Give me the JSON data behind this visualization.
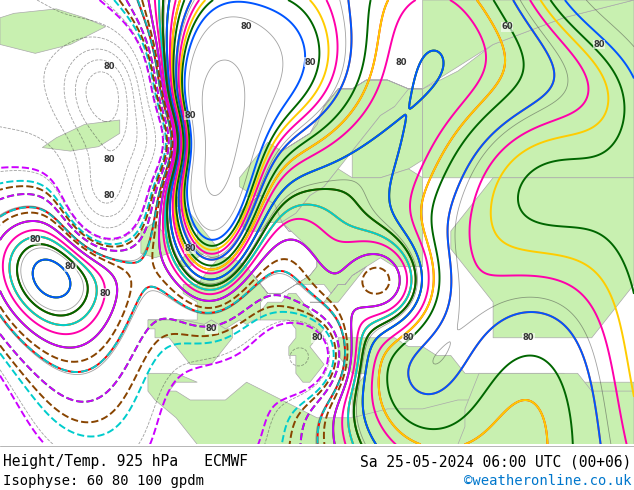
{
  "title_left": "Height/Temp. 925 hPa   ECMWF",
  "title_right": "Sa 25-05-2024 06:00 UTC (00+06)",
  "subtitle_left": "Isophyse: 60 80 100 gpdm",
  "subtitle_right": "©weatheronline.co.uk",
  "subtitle_right_color": "#0077cc",
  "bottom_bar_color": "#ffffff",
  "text_color": "#000000",
  "font_size_title": 10.5,
  "font_size_subtitle": 10,
  "ocean_color": "#d8d8d8",
  "land_color": "#c8f0b0",
  "border_color": "#aaaaaa",
  "contour_colors": [
    "#ff0000",
    "#ff6600",
    "#ffcc00",
    "#00bb00",
    "#00cccc",
    "#0055ff",
    "#cc00ff",
    "#ff00aa",
    "#884400",
    "#006600"
  ],
  "contour_linewidth": 1.4
}
